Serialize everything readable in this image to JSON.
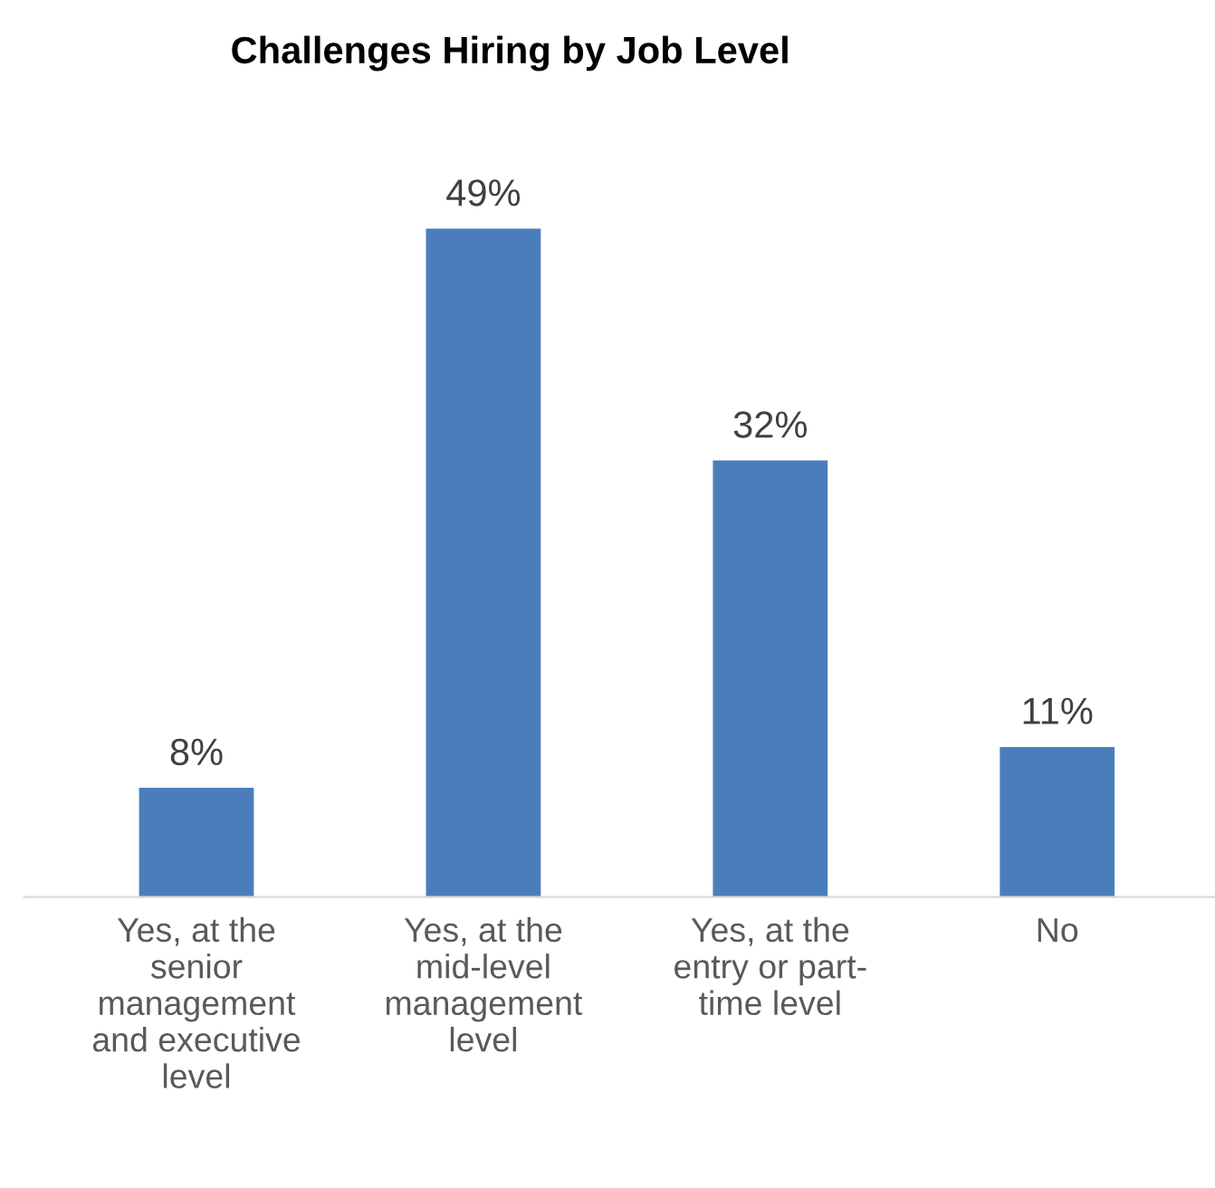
{
  "chart_data": {
    "type": "bar",
    "title": "Challenges Hiring by Job Level",
    "categories": [
      "Yes, at the\nsenior\nmanagement\nand executive\nlevel",
      "Yes, at the\nmid-level\nmanagement\nlevel",
      "Yes, at the\nentry or part-\ntime level",
      "No"
    ],
    "values": [
      8,
      49,
      32,
      11
    ],
    "value_labels": [
      "8%",
      "49%",
      "32%",
      "11%"
    ],
    "color": "#4a7ebb",
    "grid": false,
    "legend": false,
    "tick_labels": "x"
  }
}
